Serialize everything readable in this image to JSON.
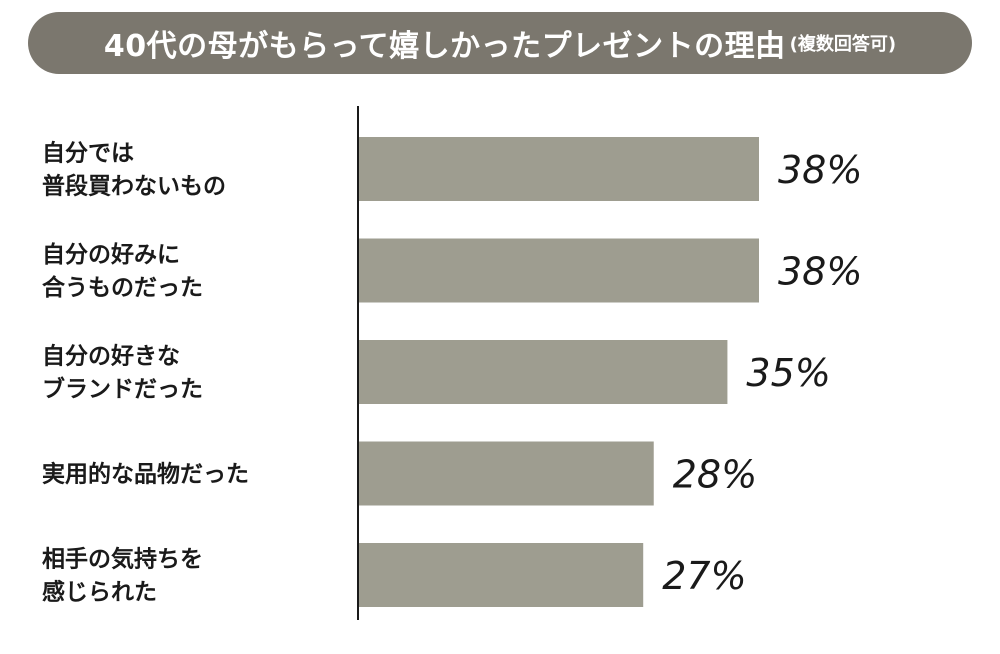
{
  "title": {
    "main": "40代の母がもらって嬉しかったプレゼントの理由",
    "note": "(複数回答可)"
  },
  "colors": {
    "title_bg": "#7b776e",
    "bar": "#9e9d90",
    "axis": "#1a1a1a"
  },
  "chart_data": {
    "type": "bar",
    "orientation": "horizontal",
    "title": "40代の母がもらって嬉しかったプレゼントの理由",
    "categories": [
      [
        "自分では",
        "普段買わないもの"
      ],
      [
        "自分の好みに",
        "合うものだった"
      ],
      [
        "自分の好きな",
        "ブランドだった"
      ],
      [
        "実用的な品物だった"
      ],
      [
        "相手の気持ちを",
        "感じられた"
      ]
    ],
    "values": [
      38,
      38,
      35,
      28,
      27
    ],
    "value_labels": [
      "38%",
      "38%",
      "35%",
      "28%",
      "27%"
    ],
    "unit": "%",
    "xlim": [
      0,
      60
    ],
    "grid": false,
    "legend": "none"
  }
}
